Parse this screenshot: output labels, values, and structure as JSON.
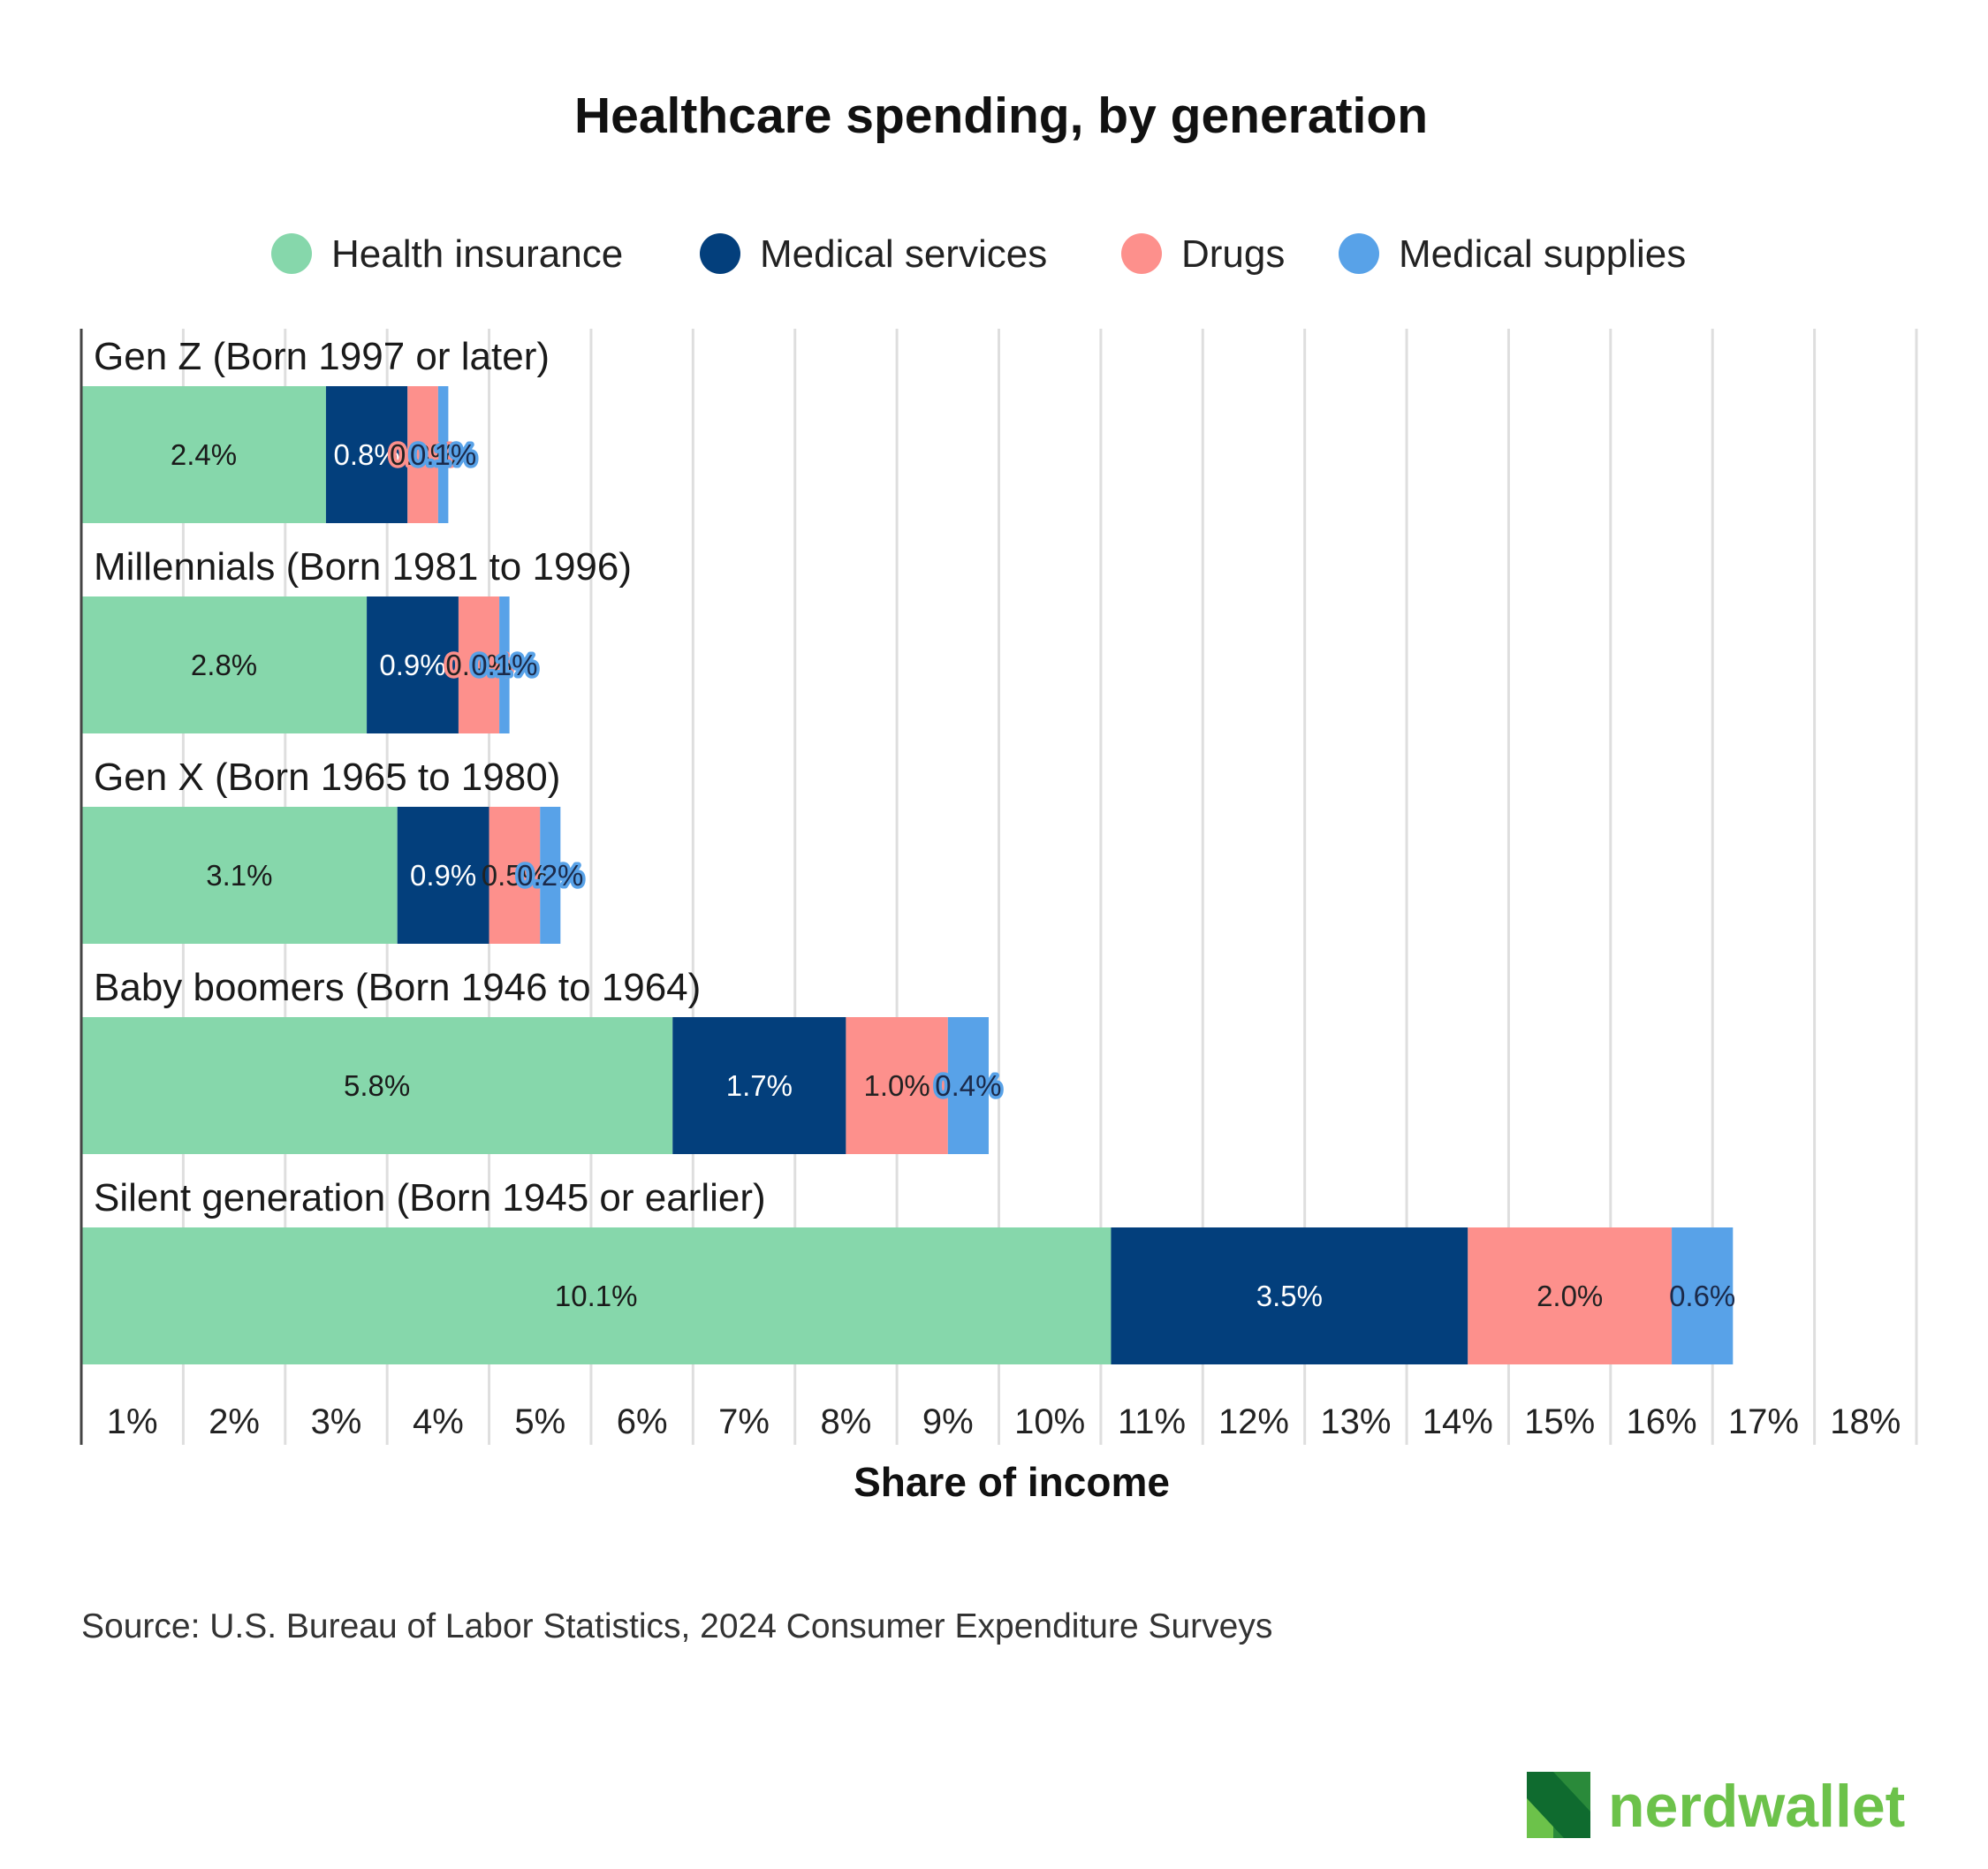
{
  "chart_data": {
    "type": "bar",
    "orientation": "horizontal",
    "stacked": true,
    "title": "Healthcare spending, by generation",
    "xlabel": "Share of income",
    "ylabel": "",
    "xlim": [
      0,
      18
    ],
    "categories": [
      "Gen Z (Born 1997 or later)",
      "Millennials (Born 1981 to 1996)",
      "Gen X (Born 1965 to 1980)",
      "Baby boomers (Born 1946 to 1964)",
      "Silent generation (Born 1945 or earlier)"
    ],
    "series": [
      {
        "name": "Health insurance",
        "color": "#86d7ab",
        "label_color": "#1a1a1a",
        "values": [
          2.4,
          2.8,
          3.1,
          5.8,
          10.1
        ],
        "labels": [
          "2.4%",
          "2.8%",
          "3.1%",
          "5.8%",
          "10.1%"
        ]
      },
      {
        "name": "Medical services",
        "color": "#033f7c",
        "label_color": "#ffffff",
        "values": [
          0.8,
          0.9,
          0.9,
          1.7,
          3.5
        ],
        "labels": [
          "0.8%",
          "0.9%",
          "0.9%",
          "1.7%",
          "3.5%"
        ]
      },
      {
        "name": "Drugs",
        "color": "#fd908c",
        "label_color": "#222222",
        "values": [
          0.3,
          0.4,
          0.5,
          1.0,
          2.0
        ],
        "labels": [
          "0.3%",
          "0.4%",
          "0.5%",
          "1.0%",
          "2.0%"
        ]
      },
      {
        "name": "Medical supplies",
        "color": "#58a2e8",
        "label_color": "#1b2a4a",
        "values": [
          0.1,
          0.1,
          0.2,
          0.4,
          0.6
        ],
        "labels": [
          "0.1%",
          "0.1%",
          "0.2%",
          "0.4%",
          "0.6%"
        ]
      }
    ],
    "ticks": [
      "1%",
      "2%",
      "3%",
      "4%",
      "5%",
      "6%",
      "7%",
      "8%",
      "9%",
      "10%",
      "11%",
      "12%",
      "13%",
      "14%",
      "15%",
      "16%",
      "17%",
      "18%"
    ],
    "grid": true,
    "legend_position": "top-center"
  },
  "source": "Source: U.S. Bureau of Labor Statistics, 2024 Consumer Expenditure Surveys",
  "logo": {
    "text": "nerdwallet",
    "icon": "nerdwallet-n-logo-icon"
  }
}
